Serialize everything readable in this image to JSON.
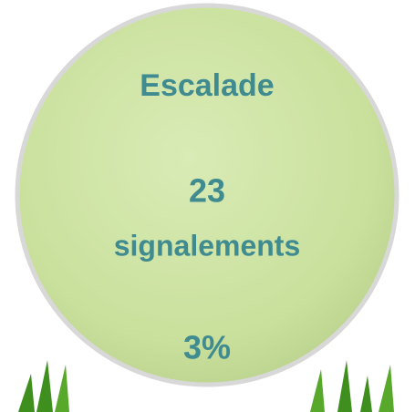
{
  "bubble": {
    "title": "Escalade",
    "count": "23",
    "unit": "signalements",
    "share": "3%"
  }
}
